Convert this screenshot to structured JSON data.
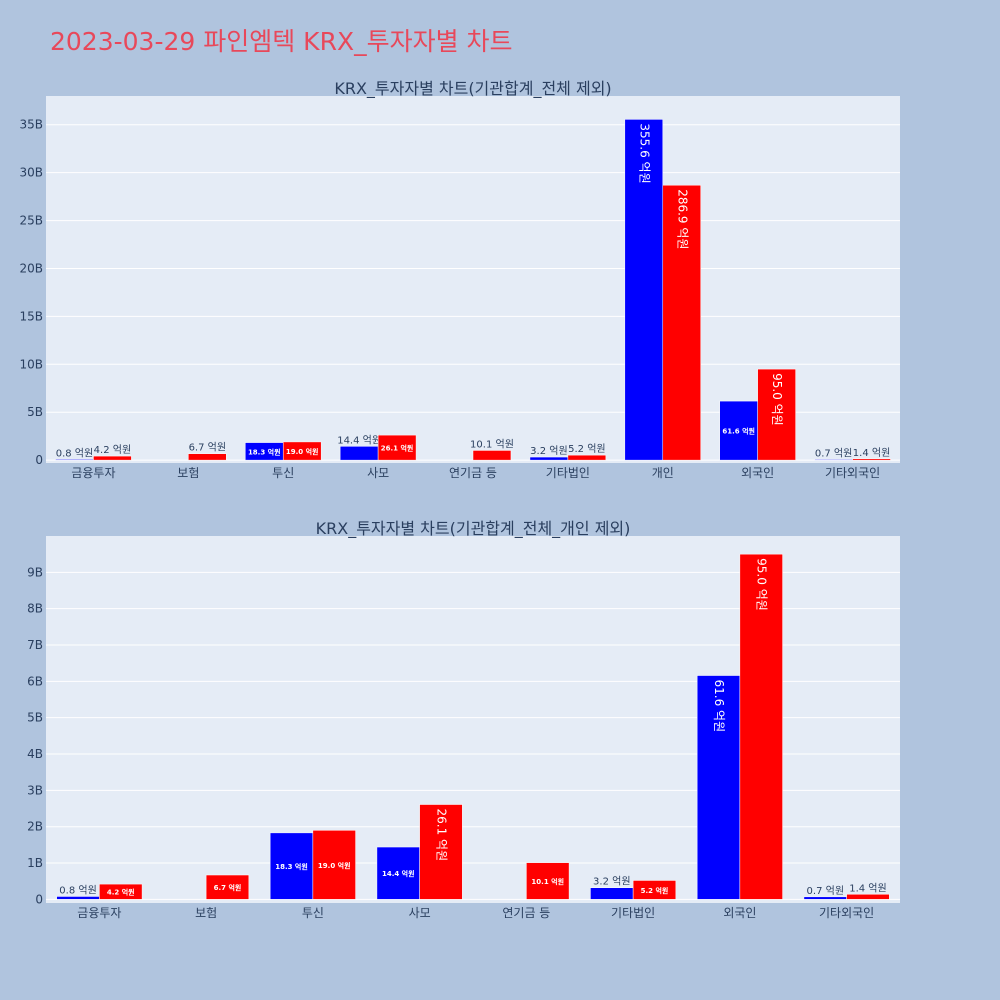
{
  "page_title": "2023-03-29 파인엠텍 KRX_투자자별 차트",
  "colors": {
    "buy": "#0000ff",
    "sell": "#ff0000",
    "plot_bg": "#e5ecf6",
    "page_bg": "#b0c4de",
    "title": "#e8485a"
  },
  "chart_data": [
    {
      "type": "bar",
      "title": "KRX_투자자별 차트(기관합계_전체 제외)",
      "categories": [
        "금융투자",
        "보험",
        "투신",
        "사모",
        "연기금 등",
        "기타법인",
        "개인",
        "외국인",
        "기타외국인"
      ],
      "series": [
        {
          "values": [
            80000000,
            null,
            1830000000,
            1440000000,
            null,
            320000000,
            35560000000,
            6160000000,
            70000000
          ],
          "labels": [
            "0.8 억원",
            "",
            "18.3 억원",
            "14.4 억원",
            "",
            "3.2 억원",
            "355.6 억원",
            "61.6 억원",
            "0.7 억원"
          ]
        },
        {
          "values": [
            420000000,
            670000000,
            1900000000,
            2610000000,
            1010000000,
            520000000,
            28690000000,
            9500000000,
            140000000
          ],
          "labels": [
            "4.2 억원",
            "6.7 억원",
            "19.0 억원",
            "26.1 억원",
            "10.1 억원",
            "5.2 억원",
            "286.9 억원",
            "95.0 억원",
            "1.4 억원"
          ]
        }
      ],
      "y_ticks": [
        "0",
        "5B",
        "10B",
        "15B",
        "20B",
        "25B",
        "30B",
        "35B"
      ],
      "ylim": [
        -300000000,
        38000000000
      ]
    },
    {
      "type": "bar",
      "title": "KRX_투자자별 차트(기관합계_전체_개인 제외)",
      "categories": [
        "금융투자",
        "보험",
        "투신",
        "사모",
        "연기금 등",
        "기타법인",
        "외국인",
        "기타외국인"
      ],
      "series": [
        {
          "values": [
            80000000,
            null,
            1830000000,
            1440000000,
            null,
            320000000,
            6160000000,
            70000000
          ],
          "labels": [
            "0.8 억원",
            "",
            "18.3 억원",
            "14.4 억원",
            "",
            "3.2 억원",
            "61.6 억원",
            "0.7 억원"
          ]
        },
        {
          "values": [
            420000000,
            670000000,
            1900000000,
            2610000000,
            1010000000,
            520000000,
            9500000000,
            140000000
          ],
          "labels": [
            "4.2 억원",
            "6.7 억원",
            "19.0 억원",
            "26.1 억원",
            "10.1 억원",
            "5.2 억원",
            "95.0 억원",
            "1.4 억원"
          ]
        }
      ],
      "y_ticks": [
        "0",
        "1B",
        "2B",
        "3B",
        "4B",
        "5B",
        "6B",
        "7B",
        "8B",
        "9B"
      ],
      "ylim": [
        -100000000,
        10000000000
      ]
    }
  ]
}
